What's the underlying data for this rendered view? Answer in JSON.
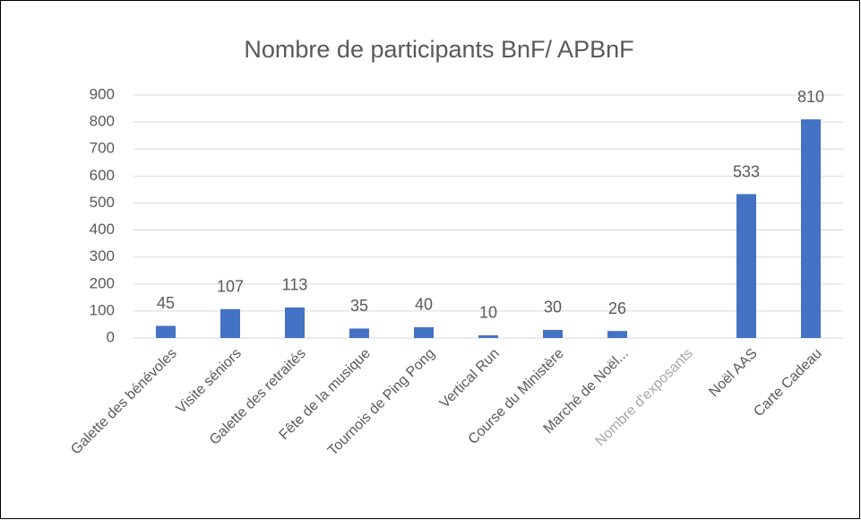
{
  "chart_data": {
    "type": "bar",
    "title": "Nombre de participants  BnF/ APBnF",
    "categories": [
      "Galette des bénévoles",
      "Visite séniors",
      "Galette des retraités",
      "Fête de la musique",
      "Tournois de Ping Pong",
      "Vertical Run",
      "Course du Ministère",
      "Marché de Noël...",
      "Nombre d'exposants",
      "Noël AAS",
      "Carte Cadeau"
    ],
    "category_colors": [
      "#595959",
      "#595959",
      "#595959",
      "#595959",
      "#595959",
      "#595959",
      "#595959",
      "#595959",
      "#a6a6a6",
      "#595959",
      "#595959"
    ],
    "values": [
      45,
      107,
      113,
      35,
      40,
      10,
      30,
      26,
      null,
      533,
      810
    ],
    "color": "#4472c4",
    "ylim": [
      0,
      900
    ],
    "yticks": [
      0,
      100,
      200,
      300,
      400,
      500,
      600,
      700,
      800,
      900
    ],
    "grid": true
  }
}
